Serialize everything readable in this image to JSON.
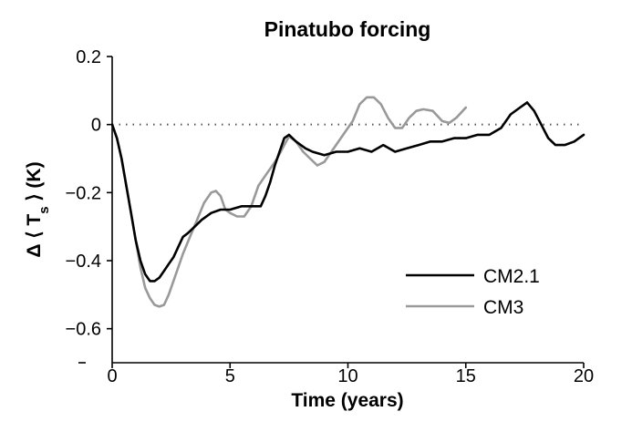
{
  "chart_data": {
    "type": "line",
    "title": "Pinatubo forcing",
    "xlabel": "Time (years)",
    "ylabel": "Δ ⟨ T_s ⟩ (K)",
    "ylabel_parts": {
      "prefix": "Δ",
      "langle": "⟨",
      "var": "T",
      "sub": "s",
      "rangle": "⟩",
      "unit": "(K)"
    },
    "xlim": [
      0,
      20
    ],
    "ylim": [
      -0.7,
      0.2
    ],
    "xticks": [
      0,
      5,
      10,
      15,
      20
    ],
    "xtick_labels": [
      "0",
      "5",
      "10",
      "15",
      "20"
    ],
    "yticks": [
      0.2,
      0,
      -0.2,
      -0.4,
      -0.6
    ],
    "ytick_labels": [
      "0.2",
      "0",
      "−0.2",
      "−0.4",
      "−0.6"
    ],
    "reference_line": {
      "y": 0,
      "style": "dotted"
    },
    "legend_position": "bottom-right",
    "series": [
      {
        "name": "CM2.1",
        "color": "#000000",
        "points": [
          [
            0,
            0
          ],
          [
            0.2,
            -0.04
          ],
          [
            0.4,
            -0.1
          ],
          [
            0.6,
            -0.18
          ],
          [
            0.8,
            -0.26
          ],
          [
            1.0,
            -0.34
          ],
          [
            1.2,
            -0.4
          ],
          [
            1.4,
            -0.44
          ],
          [
            1.6,
            -0.46
          ],
          [
            1.8,
            -0.46
          ],
          [
            2.0,
            -0.45
          ],
          [
            2.2,
            -0.43
          ],
          [
            2.4,
            -0.41
          ],
          [
            2.6,
            -0.39
          ],
          [
            2.8,
            -0.36
          ],
          [
            3.0,
            -0.33
          ],
          [
            3.2,
            -0.32
          ],
          [
            3.5,
            -0.3
          ],
          [
            3.8,
            -0.28
          ],
          [
            4.2,
            -0.26
          ],
          [
            4.6,
            -0.25
          ],
          [
            5.0,
            -0.25
          ],
          [
            5.5,
            -0.24
          ],
          [
            6.0,
            -0.24
          ],
          [
            6.3,
            -0.24
          ],
          [
            6.5,
            -0.21
          ],
          [
            6.7,
            -0.17
          ],
          [
            6.9,
            -0.12
          ],
          [
            7.1,
            -0.08
          ],
          [
            7.3,
            -0.04
          ],
          [
            7.5,
            -0.03
          ],
          [
            7.8,
            -0.05
          ],
          [
            8.2,
            -0.07
          ],
          [
            8.5,
            -0.08
          ],
          [
            9.0,
            -0.09
          ],
          [
            9.5,
            -0.08
          ],
          [
            10.0,
            -0.08
          ],
          [
            10.5,
            -0.07
          ],
          [
            11.0,
            -0.08
          ],
          [
            11.5,
            -0.06
          ],
          [
            12.0,
            -0.08
          ],
          [
            12.5,
            -0.07
          ],
          [
            13.0,
            -0.06
          ],
          [
            13.5,
            -0.05
          ],
          [
            14.0,
            -0.05
          ],
          [
            14.5,
            -0.04
          ],
          [
            15.0,
            -0.04
          ],
          [
            15.5,
            -0.03
          ],
          [
            16.0,
            -0.03
          ],
          [
            16.5,
            -0.01
          ],
          [
            16.9,
            0.03
          ],
          [
            17.3,
            0.05
          ],
          [
            17.6,
            0.065
          ],
          [
            17.9,
            0.04
          ],
          [
            18.2,
            0.0
          ],
          [
            18.5,
            -0.04
          ],
          [
            18.8,
            -0.06
          ],
          [
            19.2,
            -0.06
          ],
          [
            19.6,
            -0.05
          ],
          [
            20.0,
            -0.03
          ]
        ]
      },
      {
        "name": "CM3",
        "color": "#999999",
        "points": [
          [
            0,
            0
          ],
          [
            0.2,
            -0.04
          ],
          [
            0.4,
            -0.1
          ],
          [
            0.6,
            -0.18
          ],
          [
            0.8,
            -0.26
          ],
          [
            1.0,
            -0.34
          ],
          [
            1.2,
            -0.42
          ],
          [
            1.4,
            -0.48
          ],
          [
            1.6,
            -0.51
          ],
          [
            1.8,
            -0.53
          ],
          [
            2.0,
            -0.535
          ],
          [
            2.2,
            -0.53
          ],
          [
            2.4,
            -0.5
          ],
          [
            2.6,
            -0.46
          ],
          [
            2.8,
            -0.42
          ],
          [
            3.0,
            -0.38
          ],
          [
            3.3,
            -0.33
          ],
          [
            3.6,
            -0.28
          ],
          [
            3.9,
            -0.23
          ],
          [
            4.2,
            -0.2
          ],
          [
            4.4,
            -0.195
          ],
          [
            4.6,
            -0.21
          ],
          [
            4.8,
            -0.25
          ],
          [
            5.0,
            -0.26
          ],
          [
            5.3,
            -0.27
          ],
          [
            5.6,
            -0.27
          ],
          [
            5.9,
            -0.24
          ],
          [
            6.2,
            -0.18
          ],
          [
            6.5,
            -0.15
          ],
          [
            6.8,
            -0.12
          ],
          [
            7.0,
            -0.1
          ],
          [
            7.3,
            -0.06
          ],
          [
            7.5,
            -0.035
          ],
          [
            7.8,
            -0.05
          ],
          [
            8.1,
            -0.08
          ],
          [
            8.4,
            -0.1
          ],
          [
            8.7,
            -0.12
          ],
          [
            9.0,
            -0.11
          ],
          [
            9.3,
            -0.08
          ],
          [
            9.6,
            -0.05
          ],
          [
            9.9,
            -0.02
          ],
          [
            10.2,
            0.01
          ],
          [
            10.5,
            0.06
          ],
          [
            10.8,
            0.08
          ],
          [
            11.1,
            0.08
          ],
          [
            11.4,
            0.06
          ],
          [
            11.7,
            0.02
          ],
          [
            12.0,
            -0.01
          ],
          [
            12.3,
            -0.01
          ],
          [
            12.6,
            0.02
          ],
          [
            12.9,
            0.04
          ],
          [
            13.2,
            0.045
          ],
          [
            13.6,
            0.04
          ],
          [
            14.0,
            0.01
          ],
          [
            14.3,
            0.005
          ],
          [
            14.6,
            0.02
          ],
          [
            15.0,
            0.05
          ]
        ]
      }
    ]
  }
}
